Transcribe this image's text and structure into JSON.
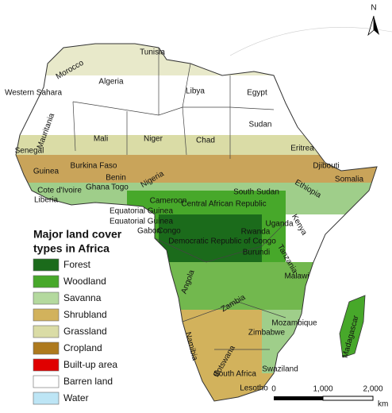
{
  "map": {
    "countries": [
      "Morocco",
      "Tunisia",
      "Algeria",
      "Libya",
      "Egypt",
      "Western Sahara",
      "Mauritania",
      "Mali",
      "Niger",
      "Chad",
      "Sudan",
      "Eritrea",
      "Senegal",
      "Burkina Faso",
      "Djibouti",
      "Guinea",
      "Benin",
      "Nigeria",
      "Ghana",
      "Togo",
      "Somalia",
      "Ethiopia",
      "Cote d'Ivoire",
      "Liberia",
      "South Sudan",
      "Cameroon",
      "Central African Republic",
      "Equatorial Guinea",
      "Equatorial Guinea",
      "Gabon",
      "Congo",
      "Uganda",
      "Kenya",
      "Rwanda",
      "Democratic Republic of Congo",
      "Burundi",
      "Tanzania",
      "Angola",
      "Malawi",
      "Zambia",
      "Mozambique",
      "Madagascar",
      "Namibia",
      "Zimbabwe",
      "Botswana",
      "South Africa",
      "Swaziland",
      "Lesotho"
    ],
    "legend": {
      "title": [
        "Major land cover",
        "types in Africa"
      ],
      "items": [
        {
          "label": "Forest",
          "color": "#1b6b1b"
        },
        {
          "label": "Woodland",
          "color": "#47a82a"
        },
        {
          "label": "Savanna",
          "color": "#b4d99e"
        },
        {
          "label": "Shrubland",
          "color": "#d2b25c"
        },
        {
          "label": "Grassland",
          "color": "#dadca6"
        },
        {
          "label": "Cropland",
          "color": "#ae7a1e"
        },
        {
          "label": "Built-up area",
          "color": "#e00000"
        },
        {
          "label": "Barren land",
          "color": "#ffffff"
        },
        {
          "label": "Water",
          "color": "#bde5f5"
        }
      ]
    },
    "scale_bar": {
      "labels": [
        "0",
        "1,000",
        "2,000"
      ],
      "unit": "km"
    },
    "north_arrow": "N"
  }
}
